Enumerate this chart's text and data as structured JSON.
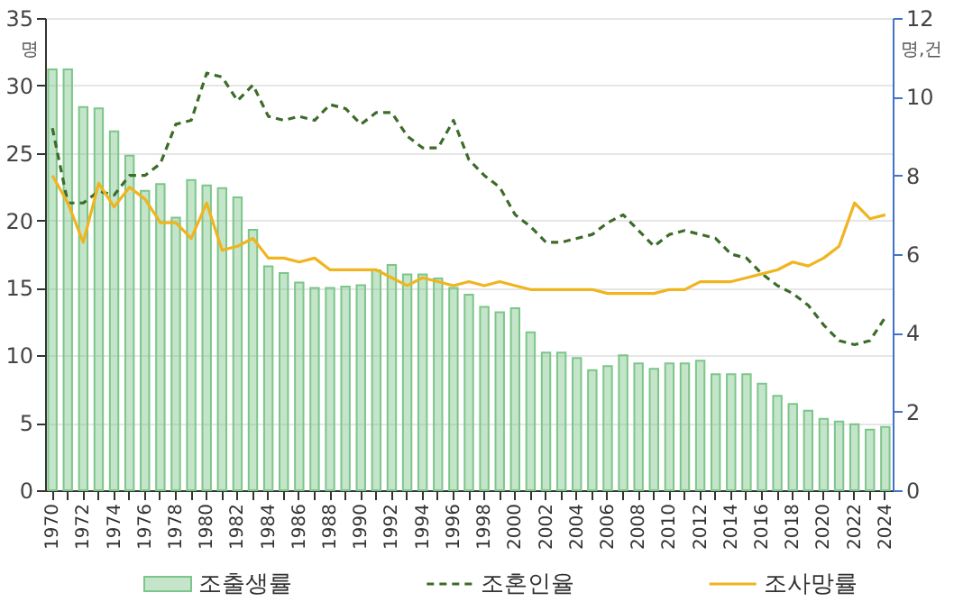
{
  "chart_data": {
    "type": "bar",
    "categories": [
      "1970",
      null,
      "1972",
      null,
      "1974",
      null,
      "1976",
      null,
      "1978",
      null,
      "1980",
      null,
      "1982",
      null,
      "1984",
      null,
      "1986",
      null,
      "1988",
      null,
      "1990",
      null,
      "1992",
      null,
      "1994",
      null,
      "1996",
      null,
      "1998",
      null,
      "2000",
      null,
      "2002",
      null,
      "2004",
      null,
      "2006",
      null,
      "2008",
      null,
      "2010",
      null,
      "2012",
      null,
      "2014",
      null,
      "2016",
      null,
      "2018",
      null,
      "2020",
      null,
      "2022",
      null,
      "2024"
    ],
    "series": [
      {
        "name": "조출생률",
        "color": "#7cc68a",
        "values": [
          31.2,
          31.2,
          28.4,
          28.3,
          26.6,
          24.8,
          22.2,
          22.7,
          20.2,
          23.0,
          22.6,
          22.4,
          21.7,
          19.3,
          16.6,
          16.1,
          15.4,
          15.0,
          15.0,
          15.1,
          15.2,
          16.3,
          16.7,
          16.0,
          16.0,
          15.7,
          15.0,
          14.5,
          13.6,
          13.2,
          13.5,
          11.7,
          10.2,
          10.2,
          9.8,
          8.9,
          9.2,
          10.0,
          9.4,
          9.0,
          9.4,
          9.4,
          9.6,
          8.6,
          8.6,
          8.6,
          7.9,
          7.0,
          6.4,
          5.9,
          5.3,
          5.1,
          4.9,
          4.5,
          4.7
        ]
      },
      {
        "name": "조혼인율",
        "type": "line",
        "axis": "y2",
        "line_style": "dashed",
        "color": "#3d6b2a",
        "values": [
          9.2,
          7.3,
          7.3,
          7.6,
          7.5,
          8.0,
          8.0,
          8.3,
          9.3,
          9.4,
          10.6,
          10.5,
          9.9,
          10.3,
          9.5,
          9.4,
          9.5,
          9.4,
          9.8,
          9.7,
          9.3,
          9.6,
          9.6,
          9.0,
          8.7,
          8.7,
          9.4,
          8.4,
          8.0,
          7.7,
          7.0,
          6.7,
          6.3,
          6.3,
          6.4,
          6.5,
          6.8,
          7.0,
          6.6,
          6.2,
          6.5,
          6.6,
          6.5,
          6.4,
          6.0,
          5.9,
          5.5,
          5.2,
          5.0,
          4.7,
          4.2,
          3.8,
          3.7,
          3.8,
          4.4
        ]
      },
      {
        "name": "조사망률",
        "type": "line",
        "axis": "y2",
        "line_style": "solid",
        "color": "#f0b41e",
        "values": [
          8.0,
          7.3,
          6.3,
          7.8,
          7.2,
          7.7,
          7.4,
          6.8,
          6.8,
          6.4,
          7.3,
          6.1,
          6.2,
          6.4,
          5.9,
          5.9,
          5.8,
          5.9,
          5.6,
          5.6,
          5.6,
          5.6,
          5.4,
          5.2,
          5.4,
          5.3,
          5.2,
          5.3,
          5.2,
          5.3,
          5.2,
          5.1,
          5.1,
          5.1,
          5.1,
          5.1,
          5.0,
          5.0,
          5.0,
          5.0,
          5.1,
          5.1,
          5.3,
          5.3,
          5.3,
          5.4,
          5.5,
          5.6,
          5.8,
          5.7,
          5.9,
          6.2,
          7.3,
          6.9,
          7.0
        ]
      }
    ],
    "ylabel": "명",
    "y2label": "명,건",
    "ylim": [
      0,
      35
    ],
    "yticks": [
      0,
      5,
      10,
      15,
      20,
      25,
      30,
      35
    ],
    "y2lim": [
      0,
      12
    ],
    "y2ticks": [
      0,
      2,
      4,
      6,
      8,
      10,
      12
    ],
    "grid": "y",
    "legend": "bottom",
    "marker": "none"
  }
}
